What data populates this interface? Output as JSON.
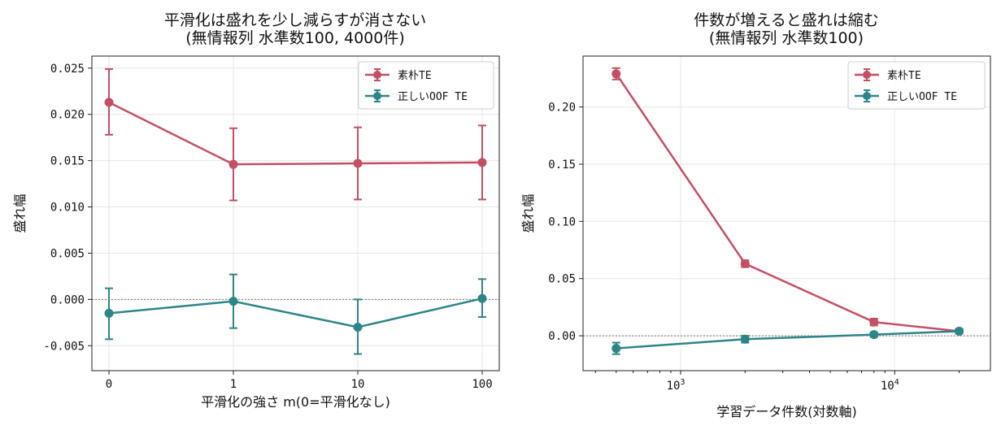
{
  "chart_data": [
    {
      "type": "line",
      "title": "平滑化は盛れを少し減らすが消さない",
      "subtitle": "(無情報列 水準数100, 4000件)",
      "xlabel": "平滑化の強さ m(0=平滑化なし)",
      "ylabel": "盛れ幅",
      "categories": [
        "0",
        "1",
        "10",
        "100"
      ],
      "ylim": [
        -0.0077,
        0.0263
      ],
      "yticks": [
        "0.025",
        "0.020",
        "0.015",
        "0.010",
        "0.005",
        "0.000",
        "-0.005"
      ],
      "ytick_values": [
        0.025,
        0.02,
        0.015,
        0.01,
        0.005,
        0.0,
        -0.005
      ],
      "grid": true,
      "legend_position": "top-right",
      "reference_line": 0,
      "series": [
        {
          "name": "素朴TE",
          "color": "#c44e63",
          "values": [
            0.0213,
            0.0146,
            0.0147,
            0.0148
          ],
          "err_low": [
            0.0178,
            0.0107,
            0.0108,
            0.0108
          ],
          "err_high": [
            0.0249,
            0.0185,
            0.0186,
            0.0188
          ]
        },
        {
          "name": "正しいOOF TE",
          "color": "#2e8587",
          "values": [
            -0.0015,
            -0.0002,
            -0.003,
            0.0001
          ],
          "err_low": [
            -0.0043,
            -0.0031,
            -0.0059,
            -0.0019
          ],
          "err_high": [
            0.0012,
            0.0027,
            0.0,
            0.0022
          ]
        }
      ]
    },
    {
      "type": "line",
      "title": "件数が増えると盛れは縮む",
      "subtitle": "(無情報列 水準数100)",
      "xlabel": "学習データ件数(対数軸)",
      "ylabel": "盛れ幅",
      "x": [
        500,
        2000,
        8000,
        20000
      ],
      "x_scale": "log",
      "xlim": [
        350,
        28000
      ],
      "xticks": [
        1000,
        10000
      ],
      "ylim": [
        -0.0305,
        0.2445
      ],
      "yticks": [
        "0.20",
        "0.15",
        "0.10",
        "0.05",
        "0.00"
      ],
      "ytick_values": [
        0.2,
        0.15,
        0.1,
        0.05,
        0.0
      ],
      "grid": true,
      "legend_position": "top-right",
      "reference_line": 0,
      "series": [
        {
          "name": "素朴TE",
          "color": "#c44e63",
          "values": [
            0.229,
            0.063,
            0.012,
            0.004
          ],
          "err_low": [
            0.224,
            0.06,
            0.009,
            0.002
          ],
          "err_high": [
            0.234,
            0.066,
            0.015,
            0.006
          ]
        },
        {
          "name": "正しいOOF TE",
          "color": "#2e8587",
          "values": [
            -0.011,
            -0.003,
            0.001,
            0.004
          ],
          "err_low": [
            -0.016,
            -0.006,
            -0.001,
            0.002
          ],
          "err_high": [
            -0.006,
            0.0,
            0.003,
            0.006
          ]
        }
      ]
    }
  ]
}
